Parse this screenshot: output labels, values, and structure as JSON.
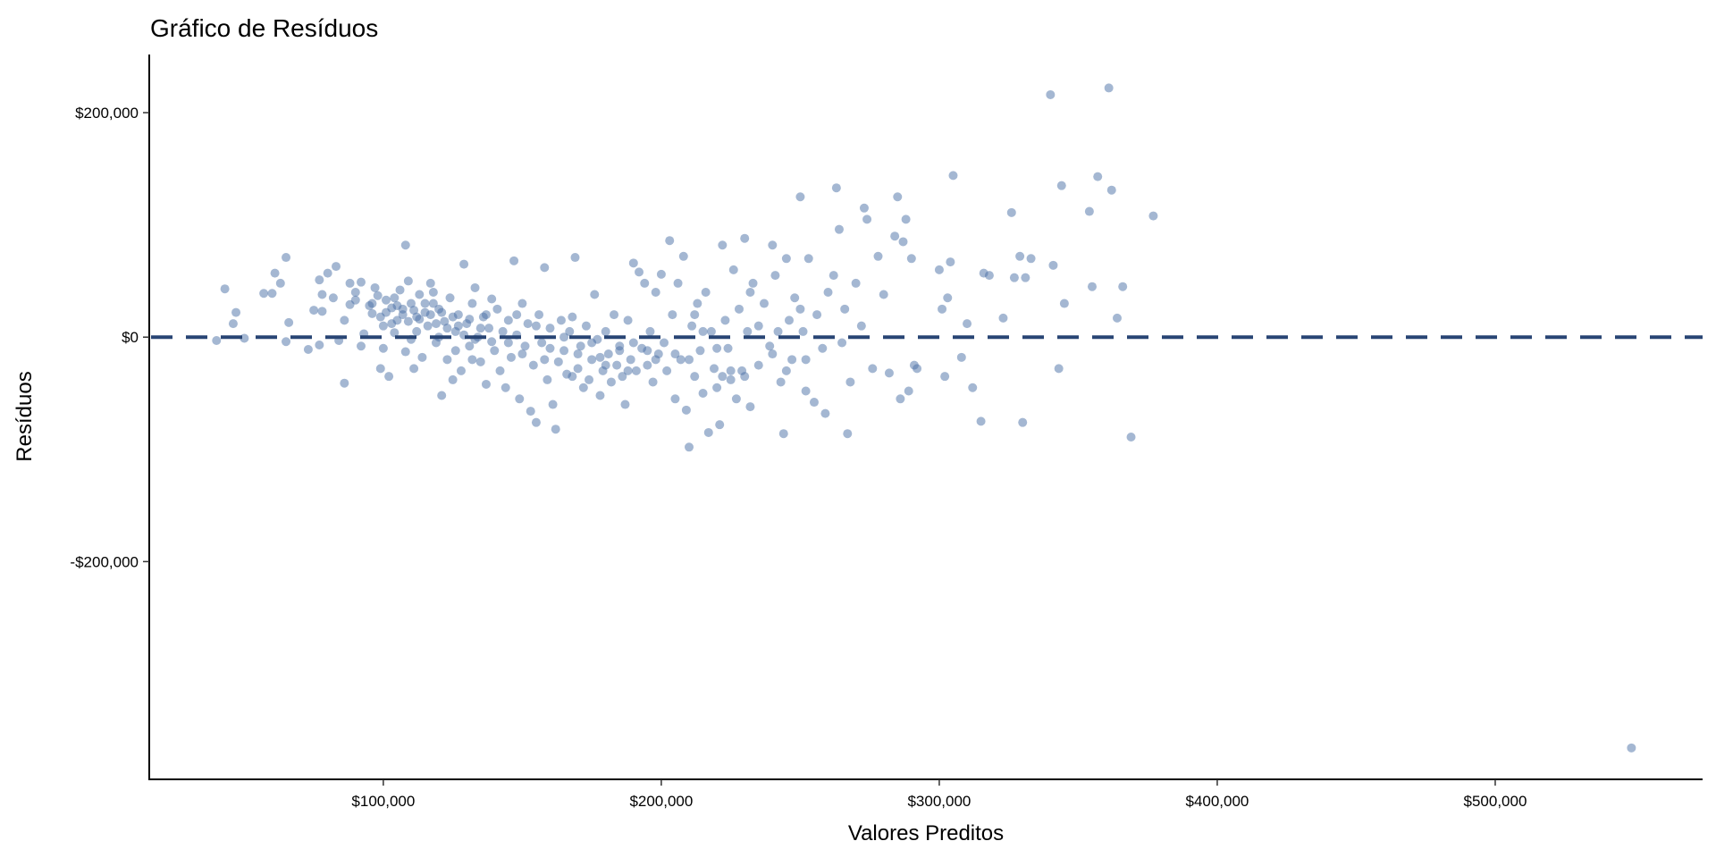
{
  "chart_data": {
    "type": "scatter",
    "title": "Gráfico de Resíduos",
    "xlabel": "Valores Preditos",
    "ylabel": "Resíduos",
    "xlim": [
      15800,
      574600
    ],
    "ylim": [
      -394000,
      251800
    ],
    "grid": false,
    "x_ticks": [
      100000,
      200000,
      300000,
      400000,
      500000
    ],
    "x_tick_labels": [
      "$100,000",
      "$200,000",
      "$300,000",
      "$400,000",
      "$500,000"
    ],
    "y_ticks": [
      200000,
      0,
      -200000
    ],
    "y_tick_labels": [
      "$200,000",
      "$0",
      "-$200,000"
    ],
    "reference_line": {
      "y": 0,
      "style": "dashed",
      "color": "#284574"
    },
    "point_color": "#4a6fa5",
    "point_opacity": 0.5,
    "units": "thousands",
    "points": [
      [
        40,
        -3
      ],
      [
        43,
        43
      ],
      [
        46,
        12
      ],
      [
        47,
        22
      ],
      [
        50,
        -1
      ],
      [
        57,
        39
      ],
      [
        60,
        39
      ],
      [
        61,
        57
      ],
      [
        63,
        48
      ],
      [
        65,
        71
      ],
      [
        66,
        13
      ],
      [
        65,
        -4
      ],
      [
        73,
        -11
      ],
      [
        75,
        24
      ],
      [
        77,
        -7
      ],
      [
        77,
        51
      ],
      [
        78,
        38
      ],
      [
        78,
        23
      ],
      [
        80,
        57
      ],
      [
        82,
        35
      ],
      [
        83,
        63
      ],
      [
        84,
        -3
      ],
      [
        86,
        -41
      ],
      [
        86,
        15
      ],
      [
        88,
        29
      ],
      [
        88,
        48
      ],
      [
        90,
        40
      ],
      [
        90,
        33
      ],
      [
        92,
        -8
      ],
      [
        92,
        49
      ],
      [
        93,
        3
      ],
      [
        95,
        28
      ],
      [
        96,
        21
      ],
      [
        97,
        44
      ],
      [
        98,
        37
      ],
      [
        99,
        -28
      ],
      [
        100,
        10
      ],
      [
        101,
        33
      ],
      [
        102,
        -35
      ],
      [
        103,
        26
      ],
      [
        104,
        4
      ],
      [
        105,
        15
      ],
      [
        106,
        42
      ],
      [
        107,
        25
      ],
      [
        108,
        -13
      ],
      [
        108,
        82
      ],
      [
        109,
        50
      ],
      [
        110,
        30
      ],
      [
        111,
        -28
      ],
      [
        112,
        18
      ],
      [
        113,
        38
      ],
      [
        114,
        -18
      ],
      [
        115,
        22
      ],
      [
        116,
        10
      ],
      [
        117,
        48
      ],
      [
        118,
        30
      ],
      [
        119,
        -5
      ],
      [
        120,
        25
      ],
      [
        121,
        -52
      ],
      [
        122,
        14
      ],
      [
        123,
        -20
      ],
      [
        124,
        35
      ],
      [
        125,
        -38
      ],
      [
        126,
        5
      ],
      [
        127,
        20
      ],
      [
        128,
        -30
      ],
      [
        129,
        65
      ],
      [
        130,
        12
      ],
      [
        131,
        -8
      ],
      [
        132,
        30
      ],
      [
        133,
        44
      ],
      [
        134,
        0
      ],
      [
        135,
        -22
      ],
      [
        136,
        18
      ],
      [
        137,
        -42
      ],
      [
        138,
        8
      ],
      [
        139,
        34
      ],
      [
        140,
        -12
      ],
      [
        96,
        30
      ],
      [
        99,
        18
      ],
      [
        101,
        22
      ],
      [
        103,
        12
      ],
      [
        105,
        28
      ],
      [
        107,
        20
      ],
      [
        109,
        14
      ],
      [
        111,
        24
      ],
      [
        113,
        16
      ],
      [
        115,
        30
      ],
      [
        117,
        20
      ],
      [
        119,
        12
      ],
      [
        121,
        22
      ],
      [
        123,
        8
      ],
      [
        125,
        18
      ],
      [
        127,
        10
      ],
      [
        129,
        2
      ],
      [
        131,
        16
      ],
      [
        133,
        -2
      ],
      [
        135,
        8
      ],
      [
        137,
        20
      ],
      [
        139,
        -4
      ],
      [
        104,
        35
      ],
      [
        112,
        5
      ],
      [
        118,
        40
      ],
      [
        126,
        -12
      ],
      [
        132,
        -20
      ],
      [
        100,
        -10
      ],
      [
        110,
        -2
      ],
      [
        120,
        0
      ],
      [
        141,
        25
      ],
      [
        142,
        -30
      ],
      [
        143,
        5
      ],
      [
        144,
        -45
      ],
      [
        145,
        15
      ],
      [
        146,
        -18
      ],
      [
        147,
        68
      ],
      [
        148,
        2
      ],
      [
        149,
        -55
      ],
      [
        150,
        30
      ],
      [
        151,
        -8
      ],
      [
        152,
        12
      ],
      [
        153,
        -66
      ],
      [
        154,
        -25
      ],
      [
        155,
        -76
      ],
      [
        156,
        20
      ],
      [
        157,
        -5
      ],
      [
        158,
        62
      ],
      [
        159,
        -38
      ],
      [
        160,
        8
      ],
      [
        161,
        -60
      ],
      [
        162,
        -82
      ],
      [
        163,
        -22
      ],
      [
        164,
        15
      ],
      [
        165,
        -12
      ],
      [
        166,
        -33
      ],
      [
        167,
        5
      ],
      [
        168,
        18
      ],
      [
        169,
        71
      ],
      [
        170,
        -28
      ],
      [
        171,
        -8
      ],
      [
        172,
        -45
      ],
      [
        173,
        10
      ],
      [
        174,
        -38
      ],
      [
        175,
        -20
      ],
      [
        176,
        38
      ],
      [
        177,
        -2
      ],
      [
        178,
        -52
      ],
      [
        179,
        -30
      ],
      [
        180,
        5
      ],
      [
        181,
        -15
      ],
      [
        182,
        -40
      ],
      [
        183,
        20
      ],
      [
        184,
        -25
      ],
      [
        185,
        -8
      ],
      [
        186,
        -35
      ],
      [
        187,
        -60
      ],
      [
        188,
        15
      ],
      [
        189,
        -20
      ],
      [
        190,
        66
      ],
      [
        191,
        -30
      ],
      [
        192,
        58
      ],
      [
        193,
        -10
      ],
      [
        194,
        48
      ],
      [
        195,
        -25
      ],
      [
        196,
        5
      ],
      [
        197,
        -40
      ],
      [
        198,
        40
      ],
      [
        199,
        -15
      ],
      [
        200,
        56
      ],
      [
        145,
        -5
      ],
      [
        150,
        -15
      ],
      [
        155,
        10
      ],
      [
        160,
        -10
      ],
      [
        165,
        0
      ],
      [
        170,
        -15
      ],
      [
        175,
        -5
      ],
      [
        180,
        -25
      ],
      [
        185,
        -12
      ],
      [
        190,
        -5
      ],
      [
        195,
        -12
      ],
      [
        148,
        20
      ],
      [
        158,
        -20
      ],
      [
        168,
        -35
      ],
      [
        178,
        -18
      ],
      [
        188,
        -30
      ],
      [
        198,
        -20
      ],
      [
        201,
        -5
      ],
      [
        202,
        -30
      ],
      [
        203,
        86
      ],
      [
        204,
        20
      ],
      [
        205,
        -55
      ],
      [
        206,
        48
      ],
      [
        207,
        -20
      ],
      [
        208,
        72
      ],
      [
        209,
        -65
      ],
      [
        210,
        -98
      ],
      [
        211,
        10
      ],
      [
        212,
        -35
      ],
      [
        213,
        30
      ],
      [
        214,
        -12
      ],
      [
        215,
        -50
      ],
      [
        216,
        40
      ],
      [
        217,
        -85
      ],
      [
        218,
        5
      ],
      [
        219,
        -28
      ],
      [
        220,
        -45
      ],
      [
        221,
        -78
      ],
      [
        222,
        82
      ],
      [
        223,
        15
      ],
      [
        224,
        -10
      ],
      [
        225,
        -38
      ],
      [
        226,
        60
      ],
      [
        227,
        -55
      ],
      [
        228,
        25
      ],
      [
        229,
        -30
      ],
      [
        230,
        88
      ],
      [
        231,
        5
      ],
      [
        232,
        -62
      ],
      [
        233,
        48
      ],
      [
        235,
        -25
      ],
      [
        237,
        30
      ],
      [
        239,
        -8
      ],
      [
        240,
        82
      ],
      [
        241,
        55
      ],
      [
        243,
        -40
      ],
      [
        244,
        -86
      ],
      [
        245,
        70
      ],
      [
        246,
        15
      ],
      [
        247,
        -20
      ],
      [
        248,
        35
      ],
      [
        250,
        125
      ],
      [
        251,
        5
      ],
      [
        252,
        -48
      ],
      [
        253,
        70
      ],
      [
        255,
        -58
      ],
      [
        256,
        20
      ],
      [
        258,
        -10
      ],
      [
        259,
        -68
      ],
      [
        260,
        40
      ],
      [
        205,
        -15
      ],
      [
        210,
        -20
      ],
      [
        215,
        5
      ],
      [
        220,
        -10
      ],
      [
        225,
        -30
      ],
      [
        230,
        -35
      ],
      [
        235,
        10
      ],
      [
        240,
        -15
      ],
      [
        245,
        -30
      ],
      [
        250,
        25
      ],
      [
        212,
        20
      ],
      [
        222,
        -35
      ],
      [
        232,
        40
      ],
      [
        242,
        5
      ],
      [
        252,
        -20
      ],
      [
        262,
        55
      ],
      [
        263,
        133
      ],
      [
        264,
        96
      ],
      [
        265,
        -5
      ],
      [
        266,
        25
      ],
      [
        267,
        -86
      ],
      [
        268,
        -40
      ],
      [
        270,
        48
      ],
      [
        272,
        10
      ],
      [
        273,
        115
      ],
      [
        274,
        105
      ],
      [
        276,
        -28
      ],
      [
        278,
        72
      ],
      [
        280,
        38
      ],
      [
        282,
        -32
      ],
      [
        284,
        90
      ],
      [
        285,
        125
      ],
      [
        286,
        -55
      ],
      [
        287,
        85
      ],
      [
        288,
        105
      ],
      [
        289,
        -48
      ],
      [
        290,
        70
      ],
      [
        291,
        -25
      ],
      [
        292,
        -28
      ],
      [
        300,
        60
      ],
      [
        301,
        25
      ],
      [
        302,
        -35
      ],
      [
        303,
        35
      ],
      [
        304,
        67
      ],
      [
        305,
        144
      ],
      [
        308,
        -18
      ],
      [
        310,
        12
      ],
      [
        312,
        -45
      ],
      [
        315,
        -75
      ],
      [
        316,
        57
      ],
      [
        318,
        55
      ],
      [
        323,
        17
      ],
      [
        326,
        111
      ],
      [
        327,
        53
      ],
      [
        329,
        72
      ],
      [
        330,
        -76
      ],
      [
        331,
        53
      ],
      [
        333,
        70
      ],
      [
        340,
        216
      ],
      [
        341,
        64
      ],
      [
        343,
        -28
      ],
      [
        344,
        135
      ],
      [
        345,
        30
      ],
      [
        354,
        112
      ],
      [
        355,
        45
      ],
      [
        357,
        143
      ],
      [
        361,
        222
      ],
      [
        362,
        131
      ],
      [
        364,
        17
      ],
      [
        366,
        45
      ],
      [
        369,
        -89
      ],
      [
        377,
        108
      ],
      [
        549,
        -366
      ]
    ]
  }
}
